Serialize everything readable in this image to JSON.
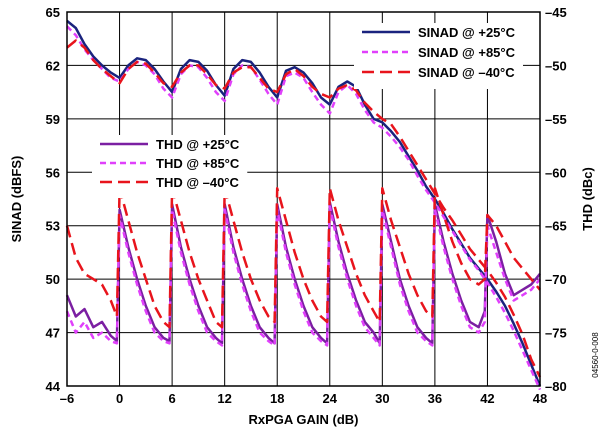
{
  "figure_id": "04560-0-008",
  "chart_data": {
    "type": "line",
    "title": "",
    "xlabel": "RxPGA GAIN (dB)",
    "ylabel_left": "SINAD (dBFS)",
    "ylabel_right": "THD (dBc)",
    "xlim": [
      -6,
      48
    ],
    "ylim_left": [
      44,
      65
    ],
    "ylim_right": [
      -80,
      -45
    ],
    "x_ticks": [
      -6,
      0,
      6,
      12,
      18,
      24,
      30,
      36,
      42,
      48
    ],
    "x_tick_labels": [
      "–6",
      "0",
      "6",
      "12",
      "18",
      "24",
      "30",
      "36",
      "42",
      "48"
    ],
    "y_left_ticks": [
      44,
      47,
      50,
      53,
      56,
      59,
      62,
      65
    ],
    "y_left_tick_labels": [
      "44",
      "47",
      "50",
      "53",
      "56",
      "59",
      "62",
      "65"
    ],
    "y_right_ticks": [
      -80,
      -75,
      -70,
      -65,
      -60,
      -55,
      -50,
      -45
    ],
    "y_right_tick_labels": [
      "–80",
      "–75",
      "–70",
      "–65",
      "–60",
      "–55",
      "–50",
      "–45"
    ],
    "grid": true,
    "legends": [
      {
        "placement": "top-right",
        "entries": [
          "SINAD @ +25°C",
          "SINAD @ +85°C",
          "SINAD @ –40°C"
        ]
      },
      {
        "placement": "middle-left",
        "entries": [
          "THD @ +25°C",
          "THD @ +85°C",
          "THD @ –40°C"
        ]
      }
    ],
    "series": [
      {
        "name": "SINAD @ +25°C",
        "axis": "left",
        "color": "#1a237e",
        "dash": "solid",
        "x": [
          -6,
          -5,
          -4,
          -3,
          -2,
          -1,
          0,
          1,
          2,
          3,
          4,
          5,
          6,
          7,
          8,
          9,
          10,
          11,
          12,
          13,
          14,
          15,
          16,
          17,
          18,
          19,
          20,
          21,
          22,
          23,
          24,
          25,
          26,
          27,
          28,
          29,
          30,
          31,
          32,
          33,
          34,
          35,
          36,
          37,
          38,
          39,
          40,
          41,
          42,
          43,
          44,
          45,
          46,
          47,
          48
        ],
        "y": [
          64.5,
          64.1,
          63.2,
          62.5,
          62.0,
          61.6,
          61.3,
          62.0,
          62.4,
          62.3,
          61.8,
          61.1,
          60.5,
          61.8,
          62.3,
          62.2,
          61.7,
          60.9,
          60.3,
          61.8,
          62.3,
          62.2,
          61.6,
          60.8,
          60.2,
          61.7,
          61.9,
          61.6,
          61.0,
          60.2,
          59.8,
          60.8,
          61.1,
          60.8,
          59.8,
          59.0,
          58.8,
          58.3,
          57.7,
          56.9,
          56.1,
          55.2,
          54.5,
          53.7,
          52.8,
          52.0,
          51.2,
          50.6,
          50.0,
          49.3,
          48.5,
          47.5,
          46.4,
          45.2,
          44.0
        ]
      },
      {
        "name": "SINAD @ +85°C",
        "axis": "left",
        "color": "#e040fb",
        "dash": "6,4",
        "x": [
          -6,
          -5,
          -4,
          -3,
          -2,
          -1,
          0,
          1,
          2,
          3,
          4,
          5,
          6,
          7,
          8,
          9,
          10,
          11,
          12,
          13,
          14,
          15,
          16,
          17,
          18,
          19,
          20,
          21,
          22,
          23,
          24,
          25,
          26,
          27,
          28,
          29,
          30,
          31,
          32,
          33,
          34,
          35,
          36,
          37,
          38,
          39,
          40,
          41,
          42,
          43,
          44,
          45,
          46,
          47,
          48
        ],
        "y": [
          64.2,
          63.7,
          62.9,
          62.3,
          61.8,
          61.3,
          61.1,
          61.8,
          62.2,
          62.0,
          61.5,
          60.7,
          60.2,
          61.5,
          62.0,
          61.9,
          61.3,
          60.5,
          60.0,
          61.5,
          62.0,
          61.9,
          61.2,
          60.4,
          59.8,
          61.4,
          61.6,
          61.3,
          60.5,
          59.8,
          59.3,
          60.5,
          60.9,
          60.4,
          59.5,
          58.8,
          58.5,
          58.0,
          57.4,
          56.7,
          55.8,
          55.0,
          54.3,
          53.5,
          52.7,
          51.9,
          51.1,
          50.5,
          49.8,
          49.0,
          48.1,
          47.1,
          46.0,
          44.9,
          43.8
        ]
      },
      {
        "name": "SINAD @ –40°C",
        "axis": "left",
        "color": "#e8141c",
        "dash": "12,6",
        "x": [
          -6,
          -5,
          -4,
          -3,
          -2,
          -1,
          0,
          1,
          2,
          3,
          4,
          5,
          6,
          7,
          8,
          9,
          10,
          11,
          12,
          13,
          14,
          15,
          16,
          17,
          18,
          19,
          20,
          21,
          22,
          23,
          24,
          25,
          26,
          27,
          28,
          29,
          30,
          31,
          32,
          33,
          34,
          35,
          36,
          37,
          38,
          39,
          40,
          41,
          42,
          43,
          44,
          45,
          46,
          47,
          48
        ],
        "y": [
          63.0,
          63.4,
          63.0,
          62.3,
          61.8,
          61.4,
          61.0,
          61.8,
          62.2,
          62.1,
          61.6,
          61.0,
          60.8,
          61.6,
          62.0,
          62.0,
          61.5,
          60.9,
          60.7,
          61.6,
          61.9,
          61.9,
          61.3,
          60.7,
          60.5,
          61.5,
          61.8,
          61.4,
          60.8,
          60.4,
          60.2,
          60.7,
          60.9,
          60.6,
          59.9,
          59.4,
          59.0,
          58.7,
          58.0,
          57.2,
          56.4,
          55.6,
          54.8,
          54.0,
          53.3,
          52.5,
          51.7,
          51.1,
          50.5,
          49.8,
          49.0,
          48.0,
          46.9,
          45.5,
          44.5
        ]
      },
      {
        "name": "THD @ +25°C",
        "axis": "right",
        "color": "#7b1fa2",
        "dash": "solid",
        "x": [
          -6,
          -5,
          -4,
          -3,
          -2,
          -1,
          -0.3,
          0,
          1,
          2,
          3,
          4,
          5,
          5.7,
          6,
          7,
          8,
          9,
          10,
          11,
          11.7,
          12,
          13,
          14,
          15,
          16,
          17,
          17.7,
          18,
          19,
          20,
          21,
          22,
          23,
          23.7,
          24,
          25,
          26,
          27,
          28,
          29,
          29.7,
          30,
          31,
          32,
          33,
          34,
          35,
          35.7,
          36,
          37,
          38,
          39,
          40,
          41,
          41.7,
          42,
          43,
          44,
          45,
          46,
          47,
          48
        ],
        "y": [
          -71.5,
          -73.5,
          -72.8,
          -74.5,
          -74.0,
          -75.3,
          -75.8,
          -63.5,
          -67.0,
          -70.0,
          -72.5,
          -74.5,
          -75.5,
          -75.8,
          -63.0,
          -67.0,
          -70.0,
          -72.5,
          -74.5,
          -75.5,
          -76.0,
          -63.0,
          -67.0,
          -70.0,
          -72.5,
          -74.5,
          -75.5,
          -76.0,
          -63.0,
          -67.0,
          -70.0,
          -72.5,
          -74.5,
          -75.5,
          -76.0,
          -62.8,
          -66.5,
          -69.5,
          -72.0,
          -74.0,
          -75.0,
          -76.0,
          -63.0,
          -66.5,
          -70.0,
          -72.5,
          -74.5,
          -75.5,
          -76.0,
          -63.0,
          -66.5,
          -69.5,
          -72.0,
          -74.0,
          -74.5,
          -73.0,
          -64.0,
          -66.5,
          -69.5,
          -71.5,
          -71.0,
          -70.5,
          -69.5
        ]
      },
      {
        "name": "THD @ +85°C",
        "axis": "right",
        "color": "#e040fb",
        "dash": "6,4",
        "x": [
          -6,
          -5,
          -4,
          -3,
          -2,
          -1,
          -0.3,
          0,
          1,
          2,
          3,
          4,
          5,
          5.7,
          6,
          7,
          8,
          9,
          10,
          11,
          11.7,
          12,
          13,
          14,
          15,
          16,
          17,
          17.7,
          18,
          19,
          20,
          21,
          22,
          23,
          23.7,
          24,
          25,
          26,
          27,
          28,
          29,
          29.7,
          30,
          31,
          32,
          33,
          34,
          35,
          35.7,
          36,
          37,
          38,
          39,
          40,
          41,
          41.7,
          42,
          43,
          44,
          45,
          46,
          47,
          48
        ],
        "y": [
          -73.0,
          -75.0,
          -74.0,
          -75.5,
          -75.0,
          -75.8,
          -76.0,
          -64.0,
          -67.5,
          -70.5,
          -73.0,
          -75.0,
          -75.8,
          -76.0,
          -63.5,
          -67.5,
          -70.5,
          -73.0,
          -75.0,
          -75.8,
          -76.2,
          -63.5,
          -67.5,
          -70.5,
          -73.0,
          -75.0,
          -75.8,
          -76.2,
          -63.5,
          -67.5,
          -70.5,
          -73.0,
          -75.0,
          -75.8,
          -76.2,
          -63.2,
          -67.0,
          -70.0,
          -72.5,
          -74.5,
          -75.5,
          -76.2,
          -63.5,
          -67.0,
          -70.5,
          -73.0,
          -75.0,
          -75.8,
          -76.2,
          -63.5,
          -67.0,
          -70.0,
          -72.5,
          -74.5,
          -75.0,
          -74.0,
          -65.0,
          -67.5,
          -70.0,
          -72.0,
          -71.5,
          -71.0,
          -70.0
        ]
      },
      {
        "name": "THD @ –40°C",
        "axis": "right",
        "color": "#e8141c",
        "dash": "12,6",
        "x": [
          -6,
          -5,
          -4,
          -3,
          -2,
          -1,
          -0.3,
          0,
          1,
          2,
          3,
          4,
          5,
          5.7,
          6,
          7,
          8,
          9,
          10,
          11,
          11.7,
          12,
          13,
          14,
          15,
          16,
          17,
          17.7,
          18,
          19,
          20,
          21,
          22,
          23,
          23.7,
          24,
          25,
          26,
          27,
          28,
          29,
          29.7,
          30,
          31,
          32,
          33,
          34,
          35,
          35.7,
          36,
          37,
          38,
          39,
          40,
          41,
          41.7,
          42,
          43,
          44,
          45,
          46,
          47,
          48
        ],
        "y": [
          -65.0,
          -68.0,
          -69.5,
          -70.0,
          -70.5,
          -72.0,
          -73.5,
          -61.5,
          -64.5,
          -67.5,
          -70.0,
          -72.5,
          -74.0,
          -74.5,
          -61.5,
          -64.5,
          -67.5,
          -70.0,
          -72.0,
          -74.0,
          -74.5,
          -61.5,
          -64.5,
          -67.5,
          -70.0,
          -72.0,
          -73.5,
          -74.0,
          -61.5,
          -64.5,
          -67.5,
          -70.0,
          -72.0,
          -73.5,
          -74.0,
          -61.5,
          -64.5,
          -67.0,
          -69.5,
          -71.5,
          -73.0,
          -74.0,
          -61.5,
          -64.5,
          -67.0,
          -69.5,
          -71.5,
          -73.0,
          -73.5,
          -61.5,
          -64.0,
          -66.5,
          -68.5,
          -70.0,
          -70.5,
          -70.0,
          -64.0,
          -65.0,
          -66.5,
          -68.0,
          -69.0,
          -70.0,
          -71.0
        ]
      }
    ]
  }
}
